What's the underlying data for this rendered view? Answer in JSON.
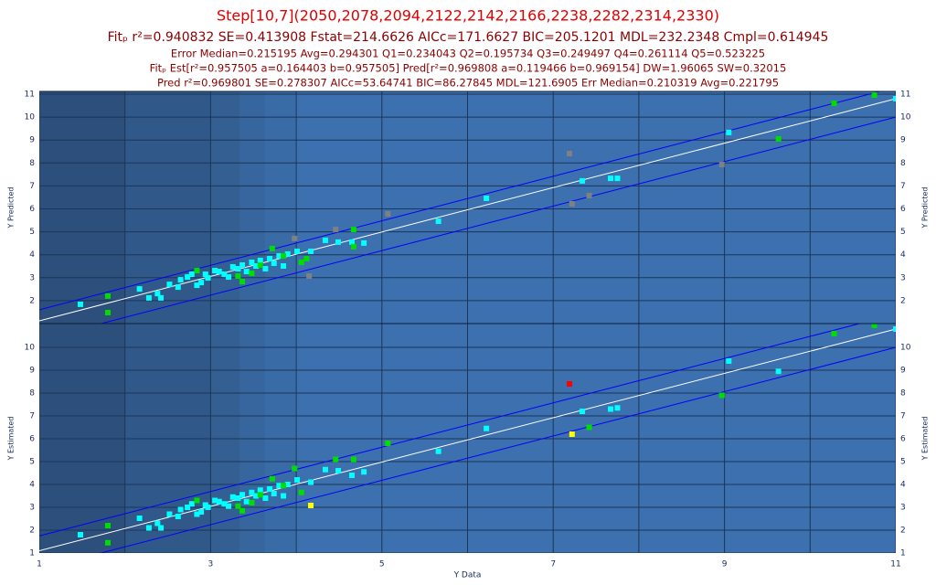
{
  "header": {
    "title": "Step[10,7](2050,2078,2094,2122,2142,2166,2238,2282,2314,2330)",
    "lines": [
      "Fitₚ r²=0.940832 SE=0.413908 Fstat=214.6626 AICc=171.6627 BIC=205.1201 MDL=232.2348 Cmpl=0.614945",
      "Error Median=0.215195 Avg=0.294301 Q1=0.234043 Q2=0.195734 Q3=0.249497 Q4=0.261114 Q5=0.523225",
      "Fitₚ Est[r²=0.957505 a=0.164403 b=0.957505] Pred[r²=0.969808 a=0.119466 b=0.969154] DW=1.96065 SW=0.32015",
      "Pred r²=0.969801 SE=0.278307 AICc=53.64741 BIC=86.27845 MDL=121.6905 Err Median=0.210319 Avg=0.221795"
    ]
  },
  "chart_data": [
    {
      "type": "scatter",
      "ylabel": "Y Predicted",
      "xlim": [
        1,
        11
      ],
      "ylim": [
        1,
        11
      ],
      "xticks": [
        1,
        3,
        5,
        7,
        9,
        11
      ],
      "minor_xticks": [
        2,
        4,
        6,
        8,
        10
      ],
      "show_xtick_labels": false,
      "yticks": [
        2,
        3,
        4,
        5,
        6,
        7,
        8,
        9,
        10,
        11
      ],
      "grid": true,
      "fit_line": {
        "color": "#ffffff",
        "x": [
          1,
          11
        ],
        "y": [
          1.12,
          10.8
        ]
      },
      "band_lines": {
        "color": "#0000ff",
        "x": [
          1,
          11
        ],
        "upper": [
          1.6,
          11.3
        ],
        "lower": [
          0.3,
          10.0
        ]
      },
      "series": [
        {
          "color": "#00ffff",
          "x": [
            1.48,
            2.17,
            2.28,
            2.38,
            2.42,
            2.52,
            2.62,
            2.65,
            2.73,
            2.78,
            2.84,
            2.89,
            2.94,
            2.97,
            3.05,
            3.1,
            3.16,
            3.21,
            3.26,
            3.32,
            3.37,
            3.42,
            3.48,
            3.53,
            3.58,
            3.64,
            3.69,
            3.74,
            3.8,
            3.85,
            3.9,
            4.01,
            4.17,
            4.34,
            4.49,
            4.65,
            4.79,
            5.66,
            6.22,
            7.34,
            7.67,
            7.75,
            9.05,
            11.0
          ],
          "values": [
            1.84,
            2.51,
            2.12,
            2.31,
            2.12,
            2.71,
            2.59,
            2.91,
            3.03,
            3.15,
            2.67,
            2.79,
            3.15,
            2.99,
            3.31,
            3.27,
            3.15,
            3.03,
            3.47,
            3.39,
            3.55,
            3.27,
            3.67,
            3.51,
            3.75,
            3.39,
            3.83,
            3.63,
            3.95,
            3.51,
            4.03,
            4.15,
            4.15,
            4.63,
            4.55,
            4.55,
            4.51,
            5.46,
            6.46,
            7.22,
            7.33,
            7.33,
            9.33,
            10.8
          ]
        },
        {
          "color": "#00dd00",
          "x": [
            1.8,
            1.8,
            2.84,
            3.32,
            3.37,
            3.48,
            3.58,
            3.72,
            3.85,
            4.06,
            4.12,
            4.67,
            4.67,
            9.63,
            10.28,
            10.75
          ],
          "values": [
            2.2,
            1.48,
            3.31,
            3.07,
            2.83,
            3.19,
            3.55,
            4.27,
            3.95,
            3.67,
            3.83,
            5.1,
            4.35,
            9.05,
            10.6,
            10.96
          ]
        },
        {
          "color": "#808080",
          "x": [
            3.98,
            4.15,
            4.46,
            5.07,
            7.19,
            7.22,
            7.42,
            8.97
          ],
          "values": [
            4.71,
            3.07,
            5.1,
            5.78,
            8.41,
            6.22,
            6.58,
            7.93
          ]
        }
      ]
    },
    {
      "type": "scatter",
      "ylabel": "Y Estimated",
      "xlabel": "Y Data",
      "xlim": [
        1,
        11
      ],
      "ylim": [
        1,
        11
      ],
      "xticks": [
        1,
        3,
        5,
        7,
        9,
        11
      ],
      "minor_xticks": [
        2,
        4,
        6,
        8,
        10
      ],
      "show_xtick_labels": true,
      "yticks": [
        1,
        2,
        3,
        4,
        5,
        6,
        7,
        8,
        9,
        10
      ],
      "grid": true,
      "fit_line": {
        "color": "#ffffff",
        "x": [
          1,
          11
        ],
        "y": [
          1.1,
          10.8
        ]
      },
      "band_lines": {
        "color": "#0000ff",
        "x": [
          1,
          11
        ],
        "upper": [
          1.75,
          11.45
        ],
        "lower": [
          0.3,
          10.0
        ]
      },
      "series": [
        {
          "color": "#00ffff",
          "x": [
            1.48,
            2.17,
            2.28,
            2.38,
            2.42,
            2.52,
            2.62,
            2.65,
            2.73,
            2.78,
            2.84,
            2.89,
            2.94,
            2.97,
            3.05,
            3.1,
            3.16,
            3.21,
            3.26,
            3.32,
            3.37,
            3.42,
            3.48,
            3.53,
            3.58,
            3.64,
            3.69,
            3.74,
            3.8,
            3.85,
            3.9,
            4.01,
            4.17,
            4.34,
            4.49,
            4.65,
            4.79,
            5.66,
            6.22,
            7.34,
            7.67,
            7.75,
            9.05,
            9.63,
            11.0
          ],
          "values": [
            1.8,
            2.52,
            2.1,
            2.3,
            2.1,
            2.7,
            2.6,
            2.9,
            3.0,
            3.15,
            2.7,
            2.8,
            3.1,
            3.0,
            3.3,
            3.25,
            3.15,
            3.05,
            3.45,
            3.4,
            3.55,
            3.25,
            3.65,
            3.5,
            3.75,
            3.4,
            3.8,
            3.6,
            3.95,
            3.5,
            4.0,
            4.2,
            4.1,
            4.65,
            4.6,
            4.4,
            4.55,
            5.45,
            6.45,
            7.2,
            7.3,
            7.35,
            9.4,
            8.95,
            10.8
          ]
        },
        {
          "color": "#00dd00",
          "x": [
            1.8,
            1.8,
            2.84,
            3.32,
            3.37,
            3.48,
            3.58,
            3.72,
            3.85,
            3.98,
            4.06,
            4.46,
            4.67,
            5.07,
            7.42,
            8.97,
            10.28,
            10.75
          ],
          "values": [
            2.2,
            1.45,
            3.3,
            3.05,
            2.85,
            3.2,
            3.55,
            4.25,
            3.95,
            4.7,
            3.65,
            5.1,
            5.1,
            5.8,
            6.5,
            7.9,
            10.6,
            10.96
          ]
        },
        {
          "color": "#ff0000",
          "x": [
            7.19
          ],
          "values": [
            8.4
          ]
        },
        {
          "color": "#ffff00",
          "x": [
            7.22,
            4.17
          ],
          "values": [
            6.2,
            3.08
          ]
        }
      ]
    }
  ]
}
